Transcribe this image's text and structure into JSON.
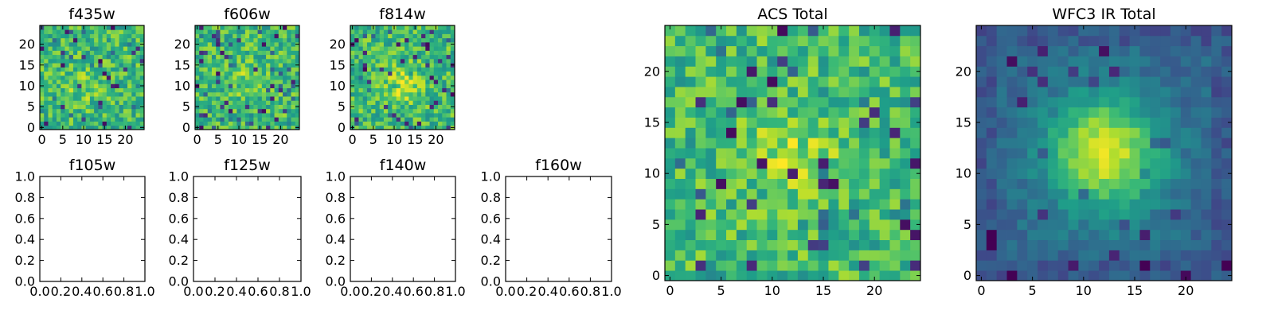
{
  "chart_data": [
    {
      "type": "heatmap",
      "title": "f435w",
      "xticks": [
        0,
        5,
        10,
        15,
        20
      ],
      "yticks": [
        0,
        5,
        10,
        15,
        20
      ],
      "xlim": [
        -0.5,
        24.5
      ],
      "ylim": [
        -0.5,
        24.5
      ],
      "grid_size": [
        25,
        25
      ],
      "colormap": "viridis",
      "seed": 11,
      "pattern": "noise",
      "blob_center": [
        10,
        10
      ],
      "blob_strength": 0.12,
      "vmin": 0,
      "vmax": 1
    },
    {
      "type": "heatmap",
      "title": "f606w",
      "xticks": [
        0,
        5,
        10,
        15,
        20
      ],
      "yticks": [
        0,
        5,
        10,
        15,
        20
      ],
      "xlim": [
        -0.5,
        24.5
      ],
      "ylim": [
        -0.5,
        24.5
      ],
      "grid_size": [
        25,
        25
      ],
      "colormap": "viridis",
      "seed": 22,
      "pattern": "noise",
      "blob_center": [
        12,
        12
      ],
      "blob_strength": 0.12,
      "vmin": 0,
      "vmax": 1
    },
    {
      "type": "heatmap",
      "title": "f814w",
      "xticks": [
        0,
        5,
        10,
        15,
        20
      ],
      "yticks": [
        0,
        5,
        10,
        15,
        20
      ],
      "xlim": [
        -0.5,
        24.5
      ],
      "ylim": [
        -0.5,
        24.5
      ],
      "grid_size": [
        25,
        25
      ],
      "colormap": "viridis",
      "seed": 33,
      "pattern": "noise",
      "blob_center": [
        12,
        11
      ],
      "blob_strength": 0.25,
      "vmin": 0,
      "vmax": 1
    },
    {
      "type": "empty",
      "title": "f105w",
      "xticks": [
        "0.0",
        "0.2",
        "0.4",
        "0.6",
        "0.8",
        "1.0"
      ],
      "yticks": [
        "0.0",
        "0.2",
        "0.4",
        "0.6",
        "0.8",
        "1.0"
      ],
      "xlim": [
        0,
        1
      ],
      "ylim": [
        0,
        1
      ]
    },
    {
      "type": "empty",
      "title": "f125w",
      "xticks": [
        "0.0",
        "0.2",
        "0.4",
        "0.6",
        "0.8",
        "1.0"
      ],
      "yticks": [
        "0.0",
        "0.2",
        "0.4",
        "0.6",
        "0.8",
        "1.0"
      ],
      "xlim": [
        0,
        1
      ],
      "ylim": [
        0,
        1
      ]
    },
    {
      "type": "empty",
      "title": "f140w",
      "xticks": [
        "0.0",
        "0.2",
        "0.4",
        "0.6",
        "0.8",
        "1.0"
      ],
      "yticks": [
        "0.0",
        "0.2",
        "0.4",
        "0.6",
        "0.8",
        "1.0"
      ],
      "xlim": [
        0,
        1
      ],
      "ylim": [
        0,
        1
      ]
    },
    {
      "type": "empty",
      "title": "f160w",
      "xticks": [
        "0.0",
        "0.2",
        "0.4",
        "0.6",
        "0.8",
        "1.0"
      ],
      "yticks": [
        "0.0",
        "0.2",
        "0.4",
        "0.6",
        "0.8",
        "1.0"
      ],
      "xlim": [
        0,
        1
      ],
      "ylim": [
        0,
        1
      ]
    },
    {
      "type": "heatmap",
      "title": "ACS Total",
      "xticks": [
        0,
        5,
        10,
        15,
        20
      ],
      "yticks": [
        0,
        5,
        10,
        15,
        20
      ],
      "xlim": [
        -0.5,
        24.5
      ],
      "ylim": [
        -0.5,
        24.5
      ],
      "grid_size": [
        25,
        25
      ],
      "colormap": "viridis",
      "seed": 44,
      "pattern": "noise",
      "blob_center": [
        12,
        12
      ],
      "blob_strength": 0.18,
      "vmin": 0,
      "vmax": 1
    },
    {
      "type": "heatmap",
      "title": "WFC3 IR Total",
      "xticks": [
        0,
        5,
        10,
        15,
        20
      ],
      "yticks": [
        0,
        5,
        10,
        15,
        20
      ],
      "xlim": [
        -0.5,
        24.5
      ],
      "ylim": [
        -0.5,
        24.5
      ],
      "grid_size": [
        25,
        25
      ],
      "colormap": "viridis",
      "seed": 55,
      "pattern": "smooth",
      "blob_center": [
        12,
        12
      ],
      "blob_strength": 1.0,
      "vmin": 0,
      "vmax": 1
    }
  ]
}
